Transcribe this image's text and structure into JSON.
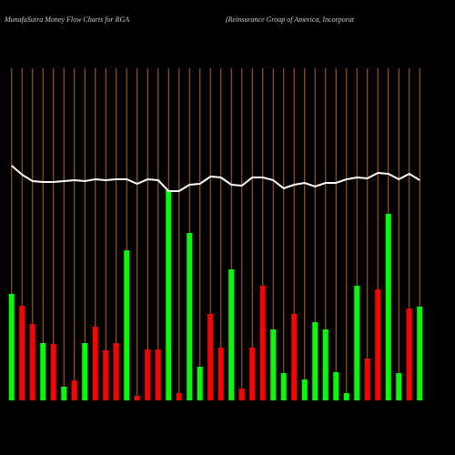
{
  "chart_data": {
    "type": "bar",
    "title": "MunafaSutra  Money Flow  Charts for RGA",
    "subtitle": "(Reinsurance   Group   of America, Incorporat",
    "categories": [
      null,
      null,
      null,
      null,
      null,
      null,
      null,
      null,
      null,
      null,
      null,
      null,
      null,
      null,
      null,
      null,
      null,
      null,
      null,
      null,
      null,
      null,
      null,
      null,
      null,
      null,
      null,
      null,
      null,
      null,
      null,
      null,
      null,
      null,
      null,
      null,
      null,
      null,
      null,
      null
    ],
    "values": [
      117,
      104,
      84,
      63,
      62,
      15,
      22,
      63,
      81,
      55,
      63,
      165,
      5,
      56,
      56,
      231,
      8,
      184,
      37,
      95,
      58,
      144,
      13,
      58,
      126,
      78,
      30,
      95,
      23,
      86,
      78,
      31,
      8,
      126,
      46,
      122,
      205,
      30,
      101,
      103
    ],
    "colors": [
      "#00ff00",
      "#ff0000",
      "#ff0000",
      "#00ff00",
      "#ff0000",
      "#00ff00",
      "#ff0000",
      "#00ff00",
      "#ff0000",
      "#ff0000",
      "#ff0000",
      "#00ff00",
      "#ff0000",
      "#ff0000",
      "#ff0000",
      "#00ff00",
      "#ff0000",
      "#00ff00",
      "#00ff00",
      "#ff0000",
      "#ff0000",
      "#00ff00",
      "#ff0000",
      "#ff0000",
      "#ff0000",
      "#00ff00",
      "#00ff00",
      "#ff0000",
      "#00ff00",
      "#00ff00",
      "#00ff00",
      "#00ff00",
      "#00ff00",
      "#00ff00",
      "#ff0000",
      "#ff0000",
      "#00ff00",
      "#00ff00",
      "#ff0000",
      "#00ff00"
    ],
    "line_values": [
      258,
      248,
      241,
      240,
      240,
      241,
      242,
      241,
      243,
      242,
      243,
      243,
      238,
      243,
      242,
      230,
      230,
      237,
      238,
      246,
      245,
      237,
      236,
      245,
      245,
      242,
      233,
      237,
      239,
      235,
      239,
      239,
      243,
      245,
      244,
      250,
      249,
      243,
      249,
      242
    ],
    "line_color": "#ffffff",
    "grid_color": "#b8650a",
    "ylim": [
      0,
      365
    ]
  }
}
